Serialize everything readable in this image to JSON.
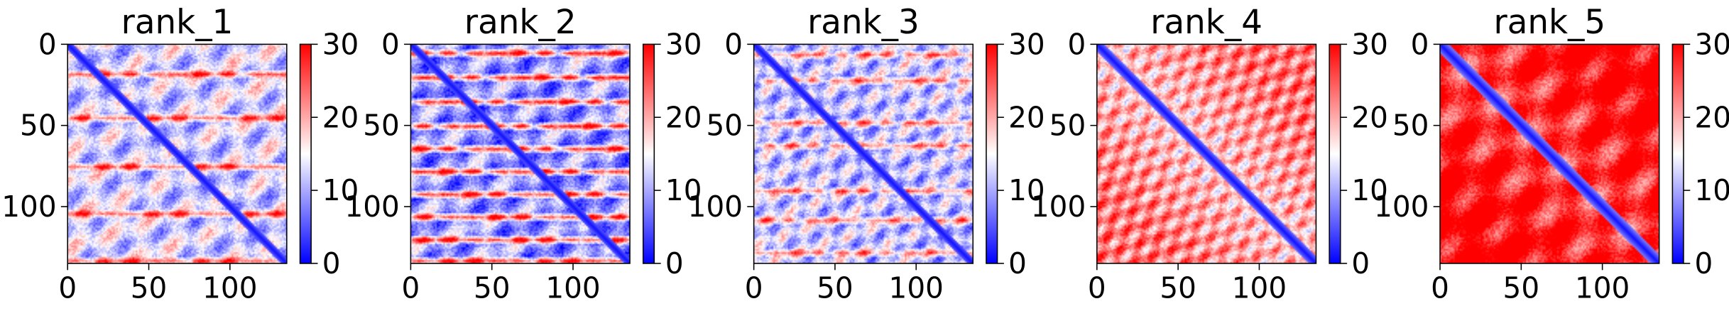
{
  "chart_data": [
    {
      "type": "heatmap",
      "title": "rank_1",
      "n": 135,
      "xlim": [
        0,
        135
      ],
      "ylim": [
        135,
        0
      ],
      "xticks": [
        0,
        50,
        100
      ],
      "yticks": [
        0,
        50,
        100
      ],
      "colorbar": {
        "vmin": 0,
        "vmax": 30,
        "ticks": [
          0,
          10,
          20,
          30
        ],
        "colormap": [
          "#0000ff",
          "#ffffff",
          "#ff0000"
        ]
      },
      "pattern": {
        "background": 12,
        "diag_width": 4,
        "hot_rows": [
          18,
          45,
          75,
          104,
          133
        ],
        "hot_value": 24,
        "period": 30
      }
    },
    {
      "type": "heatmap",
      "title": "rank_2",
      "n": 135,
      "xlim": [
        0,
        135
      ],
      "ylim": [
        135,
        0
      ],
      "xticks": [
        0,
        50,
        100
      ],
      "yticks": [
        0,
        50,
        100
      ],
      "colorbar": {
        "vmin": 0,
        "vmax": 30,
        "ticks": [
          0,
          10,
          20,
          30
        ],
        "colormap": [
          "#0000ff",
          "#ffffff",
          "#ff0000"
        ]
      },
      "pattern": {
        "background": 8,
        "diag_width": 4,
        "hot_rows": [
          5,
          20,
          35,
          50,
          64,
          78,
          92,
          106,
          120,
          133
        ],
        "hot_value": 26,
        "period": 30
      }
    },
    {
      "type": "heatmap",
      "title": "rank_3",
      "n": 135,
      "xlim": [
        0,
        135
      ],
      "ylim": [
        135,
        0
      ],
      "xticks": [
        0,
        50,
        100
      ],
      "yticks": [
        0,
        50,
        100
      ],
      "colorbar": {
        "vmin": 0,
        "vmax": 30,
        "ticks": [
          0,
          10,
          20,
          30
        ],
        "colormap": [
          "#0000ff",
          "#ffffff",
          "#ff0000"
        ]
      },
      "pattern": {
        "background": 11,
        "diag_width": 4,
        "hot_rows": [
          6,
          22,
          48,
          62,
          90,
          108,
          128
        ],
        "hot_value": 21,
        "period": 20
      }
    },
    {
      "type": "heatmap",
      "title": "rank_4",
      "n": 135,
      "xlim": [
        0,
        135
      ],
      "ylim": [
        135,
        0
      ],
      "xticks": [
        0,
        50,
        100
      ],
      "yticks": [
        0,
        50,
        100
      ],
      "colorbar": {
        "vmin": 0,
        "vmax": 30,
        "ticks": [
          0,
          10,
          20,
          30
        ],
        "colormap": [
          "#0000ff",
          "#ffffff",
          "#ff0000"
        ]
      },
      "pattern": {
        "background": 18,
        "diag_width": 5,
        "hot_rows": [],
        "hot_value": 24,
        "period": 16
      }
    },
    {
      "type": "heatmap",
      "title": "rank_5",
      "n": 135,
      "xlim": [
        0,
        135
      ],
      "ylim": [
        135,
        0
      ],
      "xticks": [
        0,
        50,
        100
      ],
      "yticks": [
        0,
        50,
        100
      ],
      "colorbar": {
        "vmin": 0,
        "vmax": 30,
        "ticks": [
          0,
          10,
          20,
          30
        ],
        "colormap": [
          "#0000ff",
          "#ffffff",
          "#ff0000"
        ]
      },
      "pattern": {
        "background": 26,
        "diag_width": 6,
        "hot_rows": [],
        "hot_value": 28,
        "period": 40
      }
    }
  ]
}
